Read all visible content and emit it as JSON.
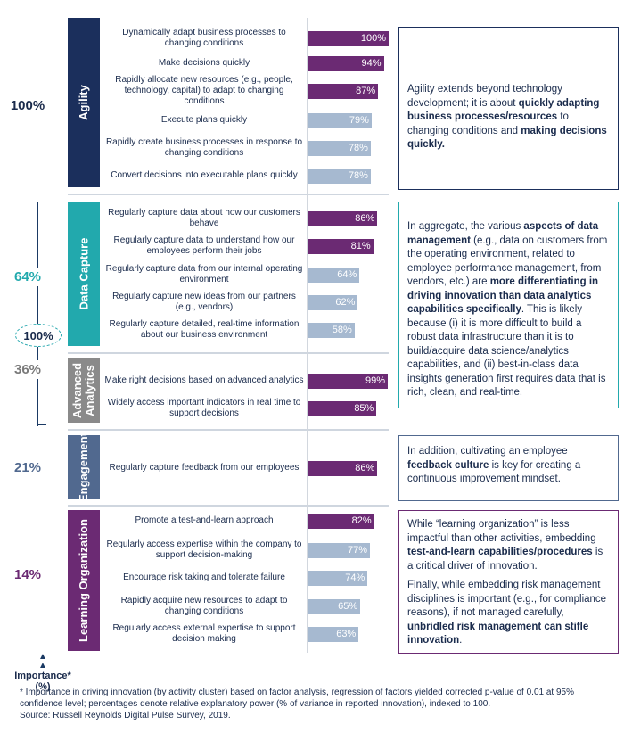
{
  "colors": {
    "top": "#6b2a73",
    "other": "#a6b9d0",
    "agility": "#1b2f5c",
    "data_capture": "#22a9ad",
    "advanced_analytics": "#8a8a8a",
    "engagement": "#51698f",
    "learning_org": "#6b2a73"
  },
  "importance_axis": {
    "label": "Importance*",
    "unit": "(%)"
  },
  "importance": {
    "agility": "100%",
    "data_capture": "64%",
    "combined": "100%",
    "advanced_analytics": "36%",
    "engagement": "21%",
    "learning_org": "14%"
  },
  "chart_data": {
    "type": "bar",
    "orientation": "horizontal",
    "xlim": [
      0,
      100
    ],
    "clusters": [
      {
        "name": "Agility",
        "items": [
          {
            "label": "Dynamically adapt business processes to changing conditions",
            "value": 100,
            "highlight": true
          },
          {
            "label": "Make decisions quickly",
            "value": 94,
            "highlight": true
          },
          {
            "label": "Rapidly allocate new resources (e.g., people, technology, capital) to adapt to changing conditions",
            "value": 87,
            "highlight": true
          },
          {
            "label": "Execute plans quickly",
            "value": 79,
            "highlight": false
          },
          {
            "label": "Rapidly create business processes in response to changing conditions",
            "value": 78,
            "highlight": false
          },
          {
            "label": "Convert decisions into executable plans quickly",
            "value": 78,
            "highlight": false
          }
        ]
      },
      {
        "name": "Data Capture",
        "items": [
          {
            "label": "Regularly capture data about how our customers behave",
            "value": 86,
            "highlight": true
          },
          {
            "label": "Regularly capture data to understand how our employees perform their jobs",
            "value": 81,
            "highlight": true
          },
          {
            "label": "Regularly capture data from our internal operating environment",
            "value": 64,
            "highlight": false
          },
          {
            "label": "Regularly capture new ideas from our partners (e.g., vendors)",
            "value": 62,
            "highlight": false
          },
          {
            "label": "Regularly capture detailed, real-time information about our business environment",
            "value": 58,
            "highlight": false
          }
        ]
      },
      {
        "name": "Advanced Analytics",
        "items": [
          {
            "label": "Make right decisions based on advanced analytics",
            "value": 99,
            "highlight": true
          },
          {
            "label": "Widely access important indicators in real time to support decisions",
            "value": 85,
            "highlight": true
          }
        ]
      },
      {
        "name": "Engagement",
        "items": [
          {
            "label": "Regularly capture feedback from our employees",
            "value": 86,
            "highlight": true
          }
        ]
      },
      {
        "name": "Learning Organization",
        "items": [
          {
            "label": "Promote a test-and-learn approach",
            "value": 82,
            "highlight": true
          },
          {
            "label": "Regularly access expertise within the company to support decision-making",
            "value": 77,
            "highlight": false
          },
          {
            "label": "Encourage risk taking and tolerate failure",
            "value": 74,
            "highlight": false
          },
          {
            "label": "Rapidly acquire new resources to adapt to changing conditions",
            "value": 65,
            "highlight": false
          },
          {
            "label": "Regularly access external expertise to support decision making",
            "value": 63,
            "highlight": false
          }
        ]
      }
    ]
  },
  "notes": {
    "agility": [
      "Agility extends beyond technology development; it is about ",
      "quickly adapting business processes/resources",
      " to changing conditions and ",
      "making decisions quickly."
    ],
    "data": [
      "In aggregate, the various ",
      "aspects of data management",
      " (e.g., data on customers from the operating environment, related to employee performance management, from vendors, etc.) are ",
      "more differentiating in driving innovation than data analytics capabilities specifically",
      ". This is likely because (i) it is more difficult to build a robust data infrastructure than it is to build/acquire data science/analytics capabilities, and (ii) best-in-class data insights generation first requires data that is rich, clean, and real-time."
    ],
    "engagement": [
      "In addition, cultivating an employee ",
      "feedback culture",
      " is key for creating a continuous improvement mindset."
    ],
    "learning_1": [
      "While “learning organization” is less impactful than other activities, embedding ",
      "test-and-learn capabilities/procedures",
      " is a critical driver of innovation."
    ],
    "learning_2": [
      "Finally, while embedding risk management disciplines is important (e.g., for compliance reasons), if not managed carefully, ",
      "unbridled risk management can stifle innovation",
      "."
    ]
  },
  "footnote": {
    "line1": "* Importance in driving innovation (by activity cluster) based on factor analysis, regression of factors yielded corrected p-value of 0.01 at 95% confidence level; percentages denote relative explanatory power (% of variance in reported innovation), indexed to 100.",
    "line2": "Source: Russell Reynolds Digital Pulse Survey, 2019."
  }
}
